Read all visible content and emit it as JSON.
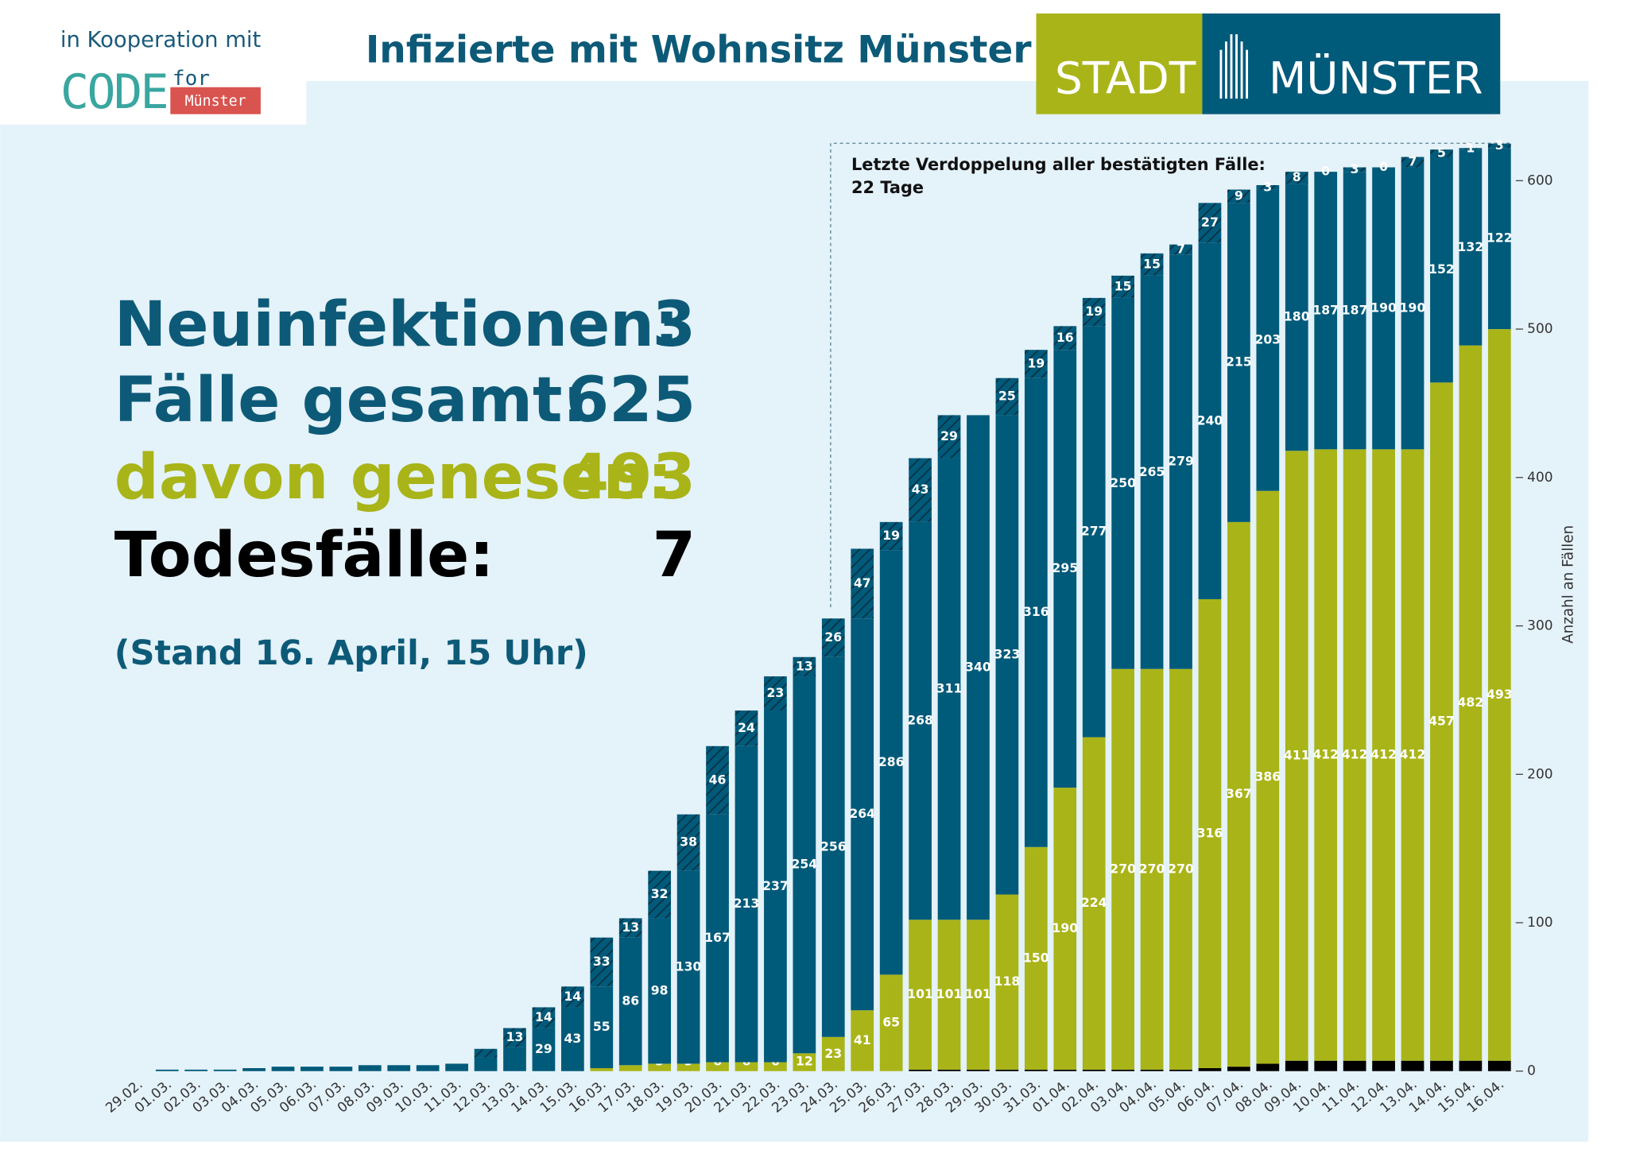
{
  "header": {
    "cooperation": "in Kooperation mit",
    "code_logo": "CODE",
    "code_for": "for",
    "code_city": "Münster",
    "title": "Infizierte mit Wohnsitz Münster",
    "city_logo_left": "STADT",
    "city_logo_right": "MÜNSTER"
  },
  "stats": [
    {
      "label": "Neuinfektionen:",
      "value": 3
    },
    {
      "label": "Fälle gesamt:",
      "value": 625
    },
    {
      "label": "davon genesen:",
      "value": 493
    },
    {
      "label": "Todesfälle:",
      "value": 7
    }
  ],
  "stand": "(Stand 16. April, 15 Uhr)",
  "chart_data": {
    "type": "bar",
    "stacked": true,
    "y_label": "Anzahl an Fällen",
    "annotation": [
      "Letzte Verdoppelung aller bestätigten Fälle:",
      "22 Tage"
    ],
    "ylim": [
      0,
      630
    ],
    "yticks": [
      0,
      100,
      200,
      300,
      400,
      500,
      600
    ],
    "categories": [
      "29.02.",
      "01.03.",
      "02.03.",
      "03.03.",
      "04.03.",
      "05.03.",
      "06.03.",
      "07.03.",
      "08.03.",
      "09.03.",
      "10.03.",
      "11.03.",
      "12.03.",
      "13.03.",
      "14.03.",
      "15.03.",
      "16.03.",
      "17.03.",
      "18.03.",
      "19.03.",
      "20.03.",
      "21.03.",
      "22.03.",
      "23.03.",
      "24.03.",
      "25.03.",
      "26.03.",
      "27.03.",
      "28.03.",
      "29.03.",
      "30.03.",
      "31.03.",
      "01.04.",
      "02.04.",
      "03.04.",
      "04.04.",
      "05.04.",
      "06.04.",
      "07.04.",
      "08.04.",
      "09.04.",
      "10.04.",
      "11.04.",
      "12.04.",
      "13.04.",
      "14.04.",
      "15.04.",
      "16.04."
    ],
    "series": [
      {
        "color": "#000000",
        "values": [
          0,
          0,
          0,
          0,
          0,
          0,
          0,
          0,
          0,
          0,
          0,
          0,
          0,
          0,
          0,
          0,
          0,
          0,
          0,
          0,
          0,
          0,
          0,
          0,
          0,
          0,
          0,
          1,
          1,
          1,
          1,
          1,
          1,
          1,
          1,
          1,
          1,
          2,
          3,
          5,
          7,
          7,
          7,
          7,
          7,
          7,
          7,
          7
        ]
      },
      {
        "color": "#a9b418",
        "values": [
          null,
          null,
          null,
          null,
          null,
          null,
          null,
          null,
          null,
          null,
          null,
          null,
          null,
          null,
          0,
          0,
          2,
          4,
          5,
          5,
          6,
          6,
          6,
          12,
          23,
          41,
          65,
          101,
          101,
          101,
          118,
          150,
          190,
          224,
          270,
          270,
          270,
          316,
          367,
          386,
          411,
          412,
          412,
          412,
          412,
          457,
          482,
          493
        ],
        "value_labels": [
          null,
          null,
          null,
          null,
          null,
          null,
          null,
          null,
          null,
          null,
          null,
          null,
          null,
          null,
          "0",
          "0",
          "2",
          "4",
          "5",
          "5",
          "6",
          "6",
          "6",
          "12",
          "23",
          "41",
          "65",
          "101",
          "101",
          "101",
          "118",
          "150",
          "190",
          "224",
          "270",
          "270",
          "270",
          "316",
          "367",
          "386",
          "411",
          "412",
          "412",
          "412",
          "412",
          "457",
          "482",
          "493"
        ]
      },
      {
        "color": "#005a7a",
        "values": [
          null,
          1,
          1,
          1,
          2,
          3,
          3,
          3,
          4,
          4,
          4,
          5,
          9,
          16,
          29,
          43,
          55,
          86,
          98,
          130,
          167,
          213,
          237,
          254,
          256,
          264,
          286,
          268,
          311,
          340,
          323,
          316,
          295,
          277,
          250,
          265,
          279,
          240,
          215,
          203,
          180,
          187,
          187,
          190,
          190,
          152,
          132,
          122
        ],
        "value_labels": [
          null,
          null,
          null,
          null,
          null,
          null,
          null,
          null,
          null,
          null,
          null,
          null,
          null,
          null,
          "29",
          "43",
          "55",
          "86",
          "98",
          "130",
          "167",
          "213",
          "237",
          "254",
          "256",
          "264",
          "286",
          "268",
          "311",
          "340",
          "323",
          "316",
          "295",
          "277",
          "250",
          "265",
          "279",
          "240",
          "215",
          "203",
          "180",
          "187",
          "187",
          "190",
          "190",
          "152",
          "132",
          "122"
        ]
      },
      {
        "color": "#005a7a",
        "hatch": true,
        "values": [
          null,
          null,
          null,
          null,
          null,
          null,
          null,
          null,
          null,
          null,
          null,
          null,
          6,
          13,
          14,
          14,
          33,
          13,
          32,
          38,
          46,
          24,
          23,
          13,
          26,
          47,
          19,
          43,
          29,
          null,
          25,
          19,
          16,
          19,
          15,
          15,
          7,
          27,
          9,
          3,
          8,
          0,
          3,
          0,
          7,
          5,
          1,
          3
        ],
        "value_labels": [
          null,
          null,
          null,
          null,
          null,
          null,
          null,
          null,
          null,
          null,
          null,
          null,
          null,
          "13",
          "14",
          "14",
          "33",
          "13",
          "32",
          "38",
          "46",
          "24",
          "23",
          "13",
          "26",
          "47",
          "19",
          "43",
          "29",
          null,
          "25",
          "19",
          "16",
          "19",
          "15",
          "15",
          "7",
          "27",
          "9",
          "3",
          "8",
          "0",
          "3",
          "0",
          "7",
          "5",
          "1",
          "3"
        ]
      }
    ]
  }
}
